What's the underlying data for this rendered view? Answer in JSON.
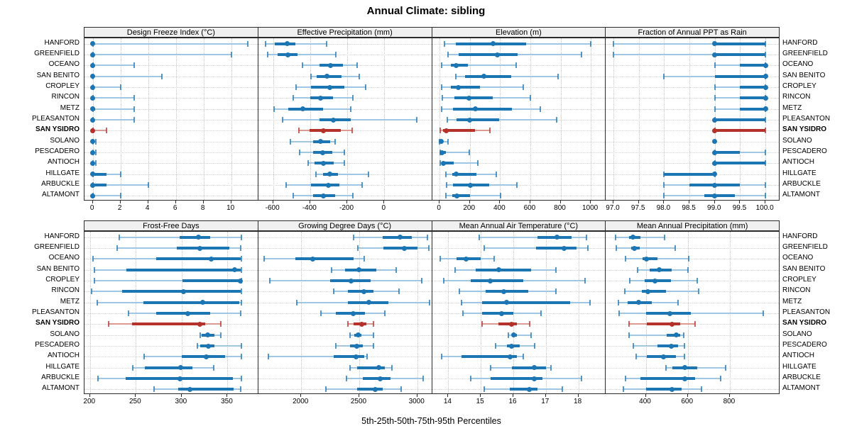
{
  "title": "Annual Climate: sibling",
  "caption": "5th-25th-50th-75th-95th Percentiles",
  "stations": [
    "HANFORD",
    "GREENFIELD",
    "OCEANO",
    "SAN BENITO",
    "CROPLEY",
    "RINCON",
    "METZ",
    "PLEASANTON",
    "SAN YSIDRO",
    "SOLANO",
    "PESCADERO",
    "ANTIOCH",
    "HILLGATE",
    "ARBUCKLE",
    "ALTAMONT"
  ],
  "highlight_station": "SAN YSIDRO",
  "highlight_index": 8,
  "percentiles": [
    "5th",
    "25th",
    "50th",
    "75th",
    "95th"
  ],
  "colors": {
    "series": "#1d76b4",
    "series_light": "#9fc6e2",
    "highlight": "#b5322a",
    "highlight_light": "#dd9a92",
    "grid": "#cccccc",
    "strip_bg": "#f0f0f0",
    "border": "#2b2b2b"
  },
  "chart_data": [
    {
      "type": "scatter",
      "variant": "percentile-interval-dotplot",
      "title": "Design Freeze Index (°C)",
      "xlim": [
        -0.6,
        11.85
      ],
      "ticks": [
        0,
        2,
        4,
        6,
        8,
        10
      ],
      "tick_labels": [
        "0",
        "2",
        "4",
        "6",
        "8",
        "10"
      ],
      "values": [
        [
          0,
          0,
          0,
          0.1,
          11.2
        ],
        [
          0,
          0,
          0,
          0.1,
          10.0
        ],
        [
          0,
          0,
          0,
          0.05,
          3.0
        ],
        [
          0,
          0,
          0,
          0.1,
          5.0
        ],
        [
          0,
          0,
          0,
          0.05,
          2.0
        ],
        [
          0,
          0,
          0,
          0.1,
          3.0
        ],
        [
          0,
          0,
          0,
          0.15,
          3.0
        ],
        [
          0,
          0,
          0,
          0.1,
          3.0
        ],
        [
          0,
          0,
          0,
          0.05,
          1.0
        ],
        [
          0,
          0,
          0,
          0,
          0.2
        ],
        [
          0,
          0,
          0,
          0,
          0.2
        ],
        [
          0,
          0,
          0,
          0,
          0.2
        ],
        [
          0,
          0,
          0,
          1.0,
          2.0
        ],
        [
          0,
          0,
          0,
          1.0,
          4.0
        ],
        [
          0,
          0,
          0,
          0.1,
          2.0
        ]
      ]
    },
    {
      "type": "scatter",
      "variant": "percentile-interval-dotplot",
      "title": "Effective Precipitation (mm)",
      "xlim": [
        -680,
        250
      ],
      "ticks": [
        -600,
        -400,
        -200,
        0
      ],
      "tick_labels": [
        "-600",
        "-400",
        "-200",
        "0"
      ],
      "values": [
        [
          -640,
          -590,
          -525,
          -480,
          -310
        ],
        [
          -630,
          -575,
          -520,
          -470,
          -260
        ],
        [
          -440,
          -350,
          -290,
          -225,
          -145
        ],
        [
          -395,
          -365,
          -310,
          -230,
          -135
        ],
        [
          -475,
          -395,
          -295,
          -215,
          -100
        ],
        [
          -490,
          -400,
          -345,
          -275,
          -170
        ],
        [
          -595,
          -520,
          -440,
          -330,
          -180
        ],
        [
          -550,
          -350,
          -275,
          -180,
          175
        ],
        [
          -460,
          -405,
          -330,
          -235,
          -175
        ],
        [
          -505,
          -385,
          -343,
          -292,
          -267
        ],
        [
          -455,
          -385,
          -334,
          -280,
          -215
        ],
        [
          -410,
          -375,
          -330,
          -273,
          -215
        ],
        [
          -370,
          -330,
          -295,
          -250,
          -85
        ],
        [
          -530,
          -395,
          -302,
          -242,
          -120
        ],
        [
          -490,
          -385,
          -330,
          -267,
          -170
        ]
      ]
    },
    {
      "type": "scatter",
      "variant": "percentile-interval-dotplot",
      "title": "Elevation (m)",
      "xlim": [
        -50,
        1090
      ],
      "ticks": [
        0,
        200,
        400,
        600,
        800,
        1000
      ],
      "tick_labels": [
        "0",
        "200",
        "400",
        "600",
        "800",
        "1000"
      ],
      "values": [
        [
          30,
          105,
          355,
          570,
          1000
        ],
        [
          55,
          125,
          380,
          515,
          940
        ],
        [
          15,
          75,
          110,
          185,
          505
        ],
        [
          105,
          170,
          295,
          475,
          785
        ],
        [
          15,
          75,
          125,
          265,
          555
        ],
        [
          20,
          100,
          195,
          350,
          600
        ],
        [
          15,
          90,
          235,
          480,
          665
        ],
        [
          50,
          110,
          200,
          395,
          775
        ],
        [
          5,
          25,
          45,
          235,
          335
        ],
        [
          0,
          5,
          10,
          25,
          55
        ],
        [
          5,
          10,
          15,
          40,
          195
        ],
        [
          5,
          15,
          25,
          95,
          255
        ],
        [
          40,
          85,
          110,
          245,
          375
        ],
        [
          45,
          90,
          205,
          330,
          510
        ],
        [
          40,
          85,
          115,
          200,
          405
        ]
      ]
    },
    {
      "type": "scatter",
      "variant": "percentile-interval-dotplot",
      "title": "Fraction of Annual PPT as Rain",
      "xlim": [
        96.85,
        100.25
      ],
      "ticks": [
        97.0,
        97.5,
        98.0,
        98.5,
        99.0,
        99.5,
        100.0
      ],
      "tick_labels": [
        "97.0",
        "97.5",
        "98.0",
        "98.5",
        "99.0",
        "99.5",
        "100.0"
      ],
      "values": [
        [
          97,
          99,
          99,
          100,
          100
        ],
        [
          97,
          99,
          99,
          100,
          100
        ],
        [
          99,
          99.5,
          100,
          100,
          100
        ],
        [
          98,
          99,
          100,
          100,
          100
        ],
        [
          99,
          99.5,
          100,
          100,
          100
        ],
        [
          99,
          99.5,
          100,
          100,
          100
        ],
        [
          99,
          99.5,
          100,
          100,
          100
        ],
        [
          99,
          99,
          99,
          100,
          100
        ],
        [
          99,
          99,
          99,
          100,
          100
        ],
        [
          99,
          99,
          99,
          99,
          99
        ],
        [
          99,
          99,
          99,
          99.5,
          100
        ],
        [
          99,
          99,
          99,
          100,
          100
        ],
        [
          98,
          98,
          99,
          99,
          99
        ],
        [
          98,
          98.5,
          99,
          99.5,
          100
        ],
        [
          98,
          98.8,
          99,
          99.4,
          100
        ]
      ]
    },
    {
      "type": "scatter",
      "variant": "percentile-interval-dotplot",
      "title": "Frost-Free Days",
      "xlim": [
        194,
        382
      ],
      "ticks": [
        200,
        250,
        300,
        350
      ],
      "tick_labels": [
        "200",
        "250",
        "300",
        "350"
      ],
      "values": [
        [
          232,
          298,
          318,
          331,
          365
        ],
        [
          230,
          295,
          320,
          352,
          364
        ],
        [
          203,
          272,
          332,
          364,
          365
        ],
        [
          205,
          240,
          358,
          364,
          365
        ],
        [
          205,
          301,
          364,
          365,
          365
        ],
        [
          202,
          235,
          302,
          364,
          365
        ],
        [
          208,
          258,
          323,
          363,
          365
        ],
        [
          242,
          272,
          307,
          331,
          364
        ],
        [
          220,
          246,
          320,
          326,
          343
        ],
        [
          320,
          322,
          328,
          336,
          343
        ],
        [
          317,
          320,
          329,
          336,
          365
        ],
        [
          259,
          300,
          327,
          347,
          365
        ],
        [
          247,
          260,
          299,
          312,
          335
        ],
        [
          209,
          239,
          298,
          356,
          365
        ],
        [
          270,
          296,
          309,
          357,
          364
        ]
      ]
    },
    {
      "type": "scatter",
      "variant": "percentile-interval-dotplot",
      "title": "Growing Degree Days (°C)",
      "xlim": [
        1630,
        3115
      ],
      "ticks": [
        2000,
        2500,
        3000
      ],
      "tick_labels": [
        "2000",
        "2500",
        "3000"
      ],
      "values": [
        [
          2450,
          2700,
          2850,
          2950,
          3090
        ],
        [
          2490,
          2710,
          2890,
          3000,
          3100
        ],
        [
          1680,
          1950,
          2100,
          2450,
          2540
        ],
        [
          2260,
          2380,
          2500,
          2650,
          2820
        ],
        [
          1730,
          2250,
          2430,
          2600,
          3040
        ],
        [
          2280,
          2400,
          2540,
          2620,
          2840
        ],
        [
          1960,
          2400,
          2580,
          2750,
          3105
        ],
        [
          2170,
          2300,
          2450,
          2550,
          2720
        ],
        [
          2400,
          2450,
          2520,
          2560,
          2620
        ],
        [
          2420,
          2460,
          2490,
          2520,
          2620
        ],
        [
          2300,
          2420,
          2480,
          2530,
          2620
        ],
        [
          1720,
          2280,
          2470,
          2540,
          2570
        ],
        [
          2420,
          2480,
          2670,
          2720,
          2780
        ],
        [
          2390,
          2530,
          2680,
          2770,
          3050
        ],
        [
          2210,
          2480,
          2640,
          2700,
          2860
        ]
      ]
    },
    {
      "type": "scatter",
      "variant": "percentile-interval-dotplot",
      "title": "Mean Annual Air Temperature (°C)",
      "xlim": [
        13.5,
        18.8
      ],
      "ticks": [
        14,
        15,
        16,
        17,
        18
      ],
      "tick_labels": [
        "14",
        "15",
        "16",
        "17",
        "18"
      ],
      "values": [
        [
          14.95,
          16.75,
          17.35,
          17.8,
          18.25
        ],
        [
          15.1,
          16.7,
          17.55,
          17.95,
          18.3
        ],
        [
          13.75,
          14.25,
          14.55,
          15.0,
          15.4
        ],
        [
          14.2,
          14.85,
          15.55,
          16.55,
          17.3
        ],
        [
          13.85,
          14.7,
          15.3,
          16.3,
          18.2
        ],
        [
          14.35,
          15.15,
          15.7,
          16.45,
          17.3
        ],
        [
          14.4,
          15.05,
          15.8,
          17.75,
          18.35
        ],
        [
          14.45,
          15.05,
          15.65,
          16.0,
          16.85
        ],
        [
          15.05,
          15.55,
          15.95,
          16.1,
          16.5
        ],
        [
          15.85,
          15.95,
          16.0,
          16.1,
          16.55
        ],
        [
          15.45,
          15.8,
          15.95,
          16.2,
          16.65
        ],
        [
          13.8,
          14.4,
          15.9,
          16.1,
          16.3
        ],
        [
          15.3,
          15.95,
          16.65,
          17.0,
          17.15
        ],
        [
          14.7,
          15.3,
          16.65,
          16.9,
          18.1
        ],
        [
          15.1,
          15.9,
          16.5,
          16.75,
          17.5
        ]
      ]
    },
    {
      "type": "scatter",
      "variant": "percentile-interval-dotplot",
      "title": "Mean Annual Precipitation (mm)",
      "xlim": [
        210,
        1030
      ],
      "ticks": [
        400,
        600,
        800
      ],
      "tick_labels": [
        "400",
        "600",
        "800"
      ],
      "values": [
        [
          255,
          320,
          340,
          375,
          490
        ],
        [
          260,
          330,
          345,
          370,
          540
        ],
        [
          305,
          385,
          405,
          455,
          605
        ],
        [
          360,
          420,
          465,
          525,
          600
        ],
        [
          325,
          395,
          445,
          520,
          645
        ],
        [
          300,
          380,
          410,
          495,
          650
        ],
        [
          270,
          315,
          365,
          430,
          555
        ],
        [
          275,
          400,
          515,
          615,
          960
        ],
        [
          320,
          405,
          525,
          565,
          635
        ],
        [
          320,
          500,
          545,
          565,
          580
        ],
        [
          340,
          455,
          520,
          555,
          585
        ],
        [
          355,
          405,
          485,
          545,
          585
        ],
        [
          495,
          525,
          585,
          645,
          780
        ],
        [
          305,
          375,
          585,
          635,
          755
        ],
        [
          295,
          400,
          525,
          570,
          665
        ]
      ]
    }
  ]
}
